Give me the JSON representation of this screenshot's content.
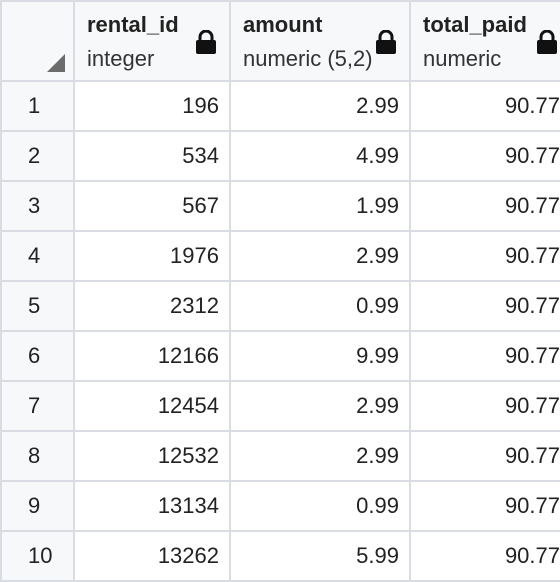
{
  "columns": [
    {
      "name": "rental_id",
      "type": "integer",
      "icon": "lock-icon"
    },
    {
      "name": "amount",
      "type": "numeric (5,2)",
      "icon": "lock-icon"
    },
    {
      "name": "total_paid",
      "type": "numeric",
      "icon": "lock-icon"
    }
  ],
  "rows": [
    {
      "index": "1",
      "rental_id": "196",
      "amount": "2.99",
      "total_paid": "90.77"
    },
    {
      "index": "2",
      "rental_id": "534",
      "amount": "4.99",
      "total_paid": "90.77"
    },
    {
      "index": "3",
      "rental_id": "567",
      "amount": "1.99",
      "total_paid": "90.77"
    },
    {
      "index": "4",
      "rental_id": "1976",
      "amount": "2.99",
      "total_paid": "90.77"
    },
    {
      "index": "5",
      "rental_id": "2312",
      "amount": "0.99",
      "total_paid": "90.77"
    },
    {
      "index": "6",
      "rental_id": "12166",
      "amount": "9.99",
      "total_paid": "90.77"
    },
    {
      "index": "7",
      "rental_id": "12454",
      "amount": "2.99",
      "total_paid": "90.77"
    },
    {
      "index": "8",
      "rental_id": "12532",
      "amount": "2.99",
      "total_paid": "90.77"
    },
    {
      "index": "9",
      "rental_id": "13134",
      "amount": "0.99",
      "total_paid": "90.77"
    },
    {
      "index": "10",
      "rental_id": "13262",
      "amount": "5.99",
      "total_paid": "90.77"
    }
  ]
}
